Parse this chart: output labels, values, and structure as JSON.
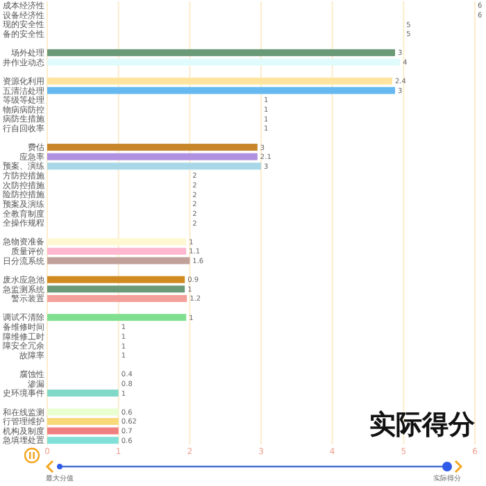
{
  "chart_data": {
    "type": "bar",
    "orientation": "horizontal",
    "title": "实际得分",
    "categories": [
      "成本经济性",
      "设备经济性",
      "现的安全性",
      "备的安全性",
      null,
      "场外处理",
      "井作业动态",
      null,
      "资源化利用",
      "五清洁处理",
      "等级等处理",
      "物病病防控",
      "病防生措施",
      "行自回收率",
      null,
      "费估",
      "应急率",
      "预案、演练",
      "方防控措施",
      "次防控措施",
      "险防控措施",
      "预案及演练",
      "全教育制度",
      "全操作规程",
      null,
      "急物资准备",
      "质量评价",
      "日分流系统",
      null,
      "废水应急池",
      "急监测系统",
      "警示装置",
      null,
      "调试不清除",
      "备维修时间",
      "障维修工时",
      "障安全冗余",
      "故障率",
      null,
      "腐蚀性",
      "渗漏",
      "史环境事件",
      null,
      "和在线监测",
      "行管理维护",
      "机构及制度",
      "急填埋处置"
    ],
    "values": [
      null,
      null,
      null,
      null,
      null,
      4.88,
      4.95,
      null,
      4.84,
      4.88,
      null,
      null,
      null,
      null,
      null,
      2.95,
      2.95,
      3.0,
      null,
      null,
      null,
      null,
      null,
      null,
      null,
      1.95,
      1.95,
      2.0,
      null,
      1.93,
      1.93,
      1.96,
      null,
      1.95,
      null,
      null,
      null,
      null,
      null,
      null,
      null,
      1.0,
      null,
      1.0,
      1.0,
      1.0,
      1.0
    ],
    "colors": [
      null,
      null,
      null,
      null,
      null,
      "#6a9a78",
      "#e0fbfb",
      null,
      "#ffe4a0",
      "#66b8f0",
      null,
      null,
      null,
      null,
      null,
      "#c8862a",
      "#b090e0",
      "#a8d8e8",
      null,
      null,
      null,
      null,
      null,
      null,
      null,
      "#fff8d0",
      "#ffb8d0",
      "#c0a098",
      null,
      "#d08a20",
      "#6a9a78",
      "#f4a09a",
      null,
      "#80e090",
      null,
      null,
      null,
      null,
      null,
      null,
      null,
      "#80d8c8",
      null,
      "#e8ffd0",
      "#f8d878",
      "#f08080",
      "#80e0d8"
    ],
    "xlim": [
      0,
      6
    ],
    "xticks": [
      0,
      1,
      2,
      3,
      4,
      5,
      6
    ],
    "grid": "x",
    "annotations": [
      {
        "text": "3",
        "x": 4.88,
        "y": "场外处理"
      },
      {
        "text": "4",
        "x": 4.95,
        "y": "井作业动态"
      },
      {
        "text": "2.4",
        "x": 4.84,
        "y": "资源化利用"
      },
      {
        "text": "3",
        "x": 4.88,
        "y": "五清洁处理"
      },
      {
        "text": "3",
        "x": 2.95,
        "y": "费估"
      },
      {
        "text": "2.1",
        "x": 2.95,
        "y": "应急率"
      },
      {
        "text": "3",
        "x": 3.0,
        "y": "预案、演练"
      },
      {
        "text": "1",
        "x": 1.95,
        "y": "急物资准备"
      },
      {
        "text": "1.1",
        "x": 1.95,
        "y": "质量评价"
      },
      {
        "text": "1.6",
        "x": 2.0,
        "y": "日分流系统"
      },
      {
        "text": "0.9",
        "x": 1.93,
        "y": "废水应急池"
      },
      {
        "text": "1",
        "x": 1.93,
        "y": "急监测系统"
      },
      {
        "text": "1.2",
        "x": 1.96,
        "y": "警示装置"
      },
      {
        "text": "1",
        "x": 1.95,
        "y": "调试不清除"
      },
      {
        "text": "1",
        "x": 1.0,
        "y": "史环境事件"
      },
      {
        "text": "0.6",
        "x": 1.0,
        "y": "和在线监测"
      },
      {
        "text": "0.62",
        "x": 1.0,
        "y": "行管理维护"
      },
      {
        "text": "0.7",
        "x": 1.0,
        "y": "机构及制度"
      },
      {
        "text": "0.6",
        "x": 1.0,
        "y": "急填埋处置"
      },
      "6",
      "6",
      "5",
      "5",
      "1",
      "1",
      "1",
      "1",
      "2",
      "2",
      "2",
      "2",
      "2",
      "2",
      "1",
      "1",
      "1",
      "1",
      "0.4",
      "0.8",
      "最大分值",
      "实际得分"
    ]
  }
}
